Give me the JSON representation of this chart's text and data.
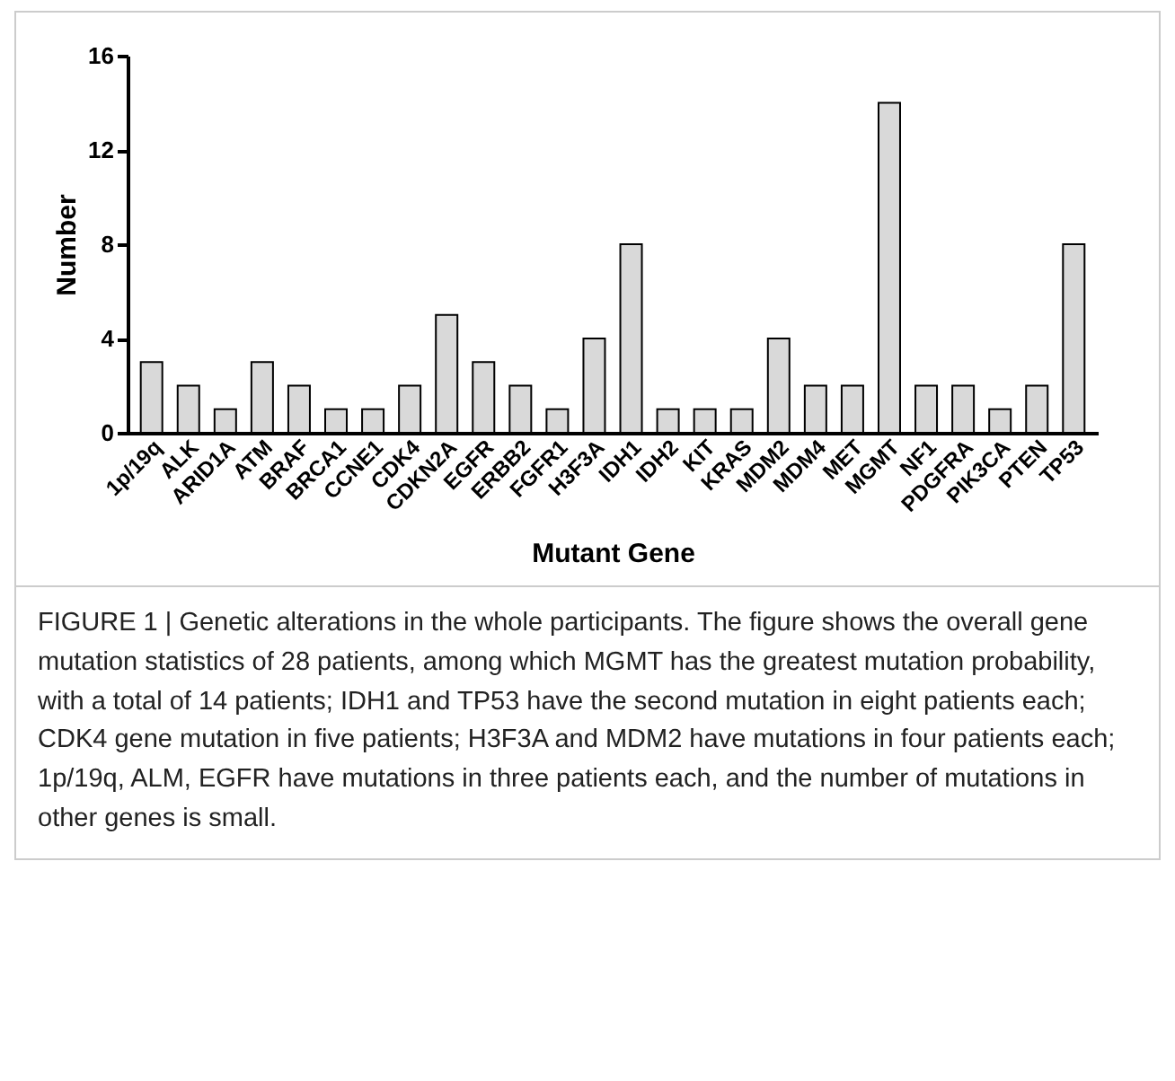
{
  "chart_data": {
    "type": "bar",
    "xlabel": "Mutant Gene",
    "ylabel": "Number",
    "categories": [
      "1p/19q",
      "ALK",
      "ARID1A",
      "ATM",
      "BRAF",
      "BRCA1",
      "CCNE1",
      "CDK4",
      "CDKN2A",
      "EGFR",
      "ERBB2",
      "FGFR1",
      "H3F3A",
      "IDH1",
      "IDH2",
      "KIT",
      "KRAS",
      "MDM2",
      "MDM4",
      "MET",
      "MGMT",
      "NF1",
      "PDGFRA",
      "PIK3CA",
      "PTEN",
      "TP53"
    ],
    "values": [
      3,
      2,
      1,
      3,
      2,
      1,
      1,
      2,
      5,
      3,
      2,
      1,
      4,
      8,
      1,
      1,
      1,
      4,
      2,
      2,
      14,
      2,
      2,
      1,
      2,
      8
    ],
    "color": "#d9d9d9",
    "ylim": [
      0,
      16
    ],
    "yticks": [
      0,
      4,
      8,
      12,
      16
    ],
    "grid": false,
    "annotations": [
      "FIGURE 1 | Genetic alterations in the whole participants. The figure shows the overall gene mutation statistics of 28 patients, among which MGMT has the greatest mutation probability, with a total of 14 patients; IDH1 and TP53 have the second mutation in eight patients each; CDK4 gene mutation in five patients; H3F3A and MDM2 have mutations in four patients each; 1p/19q, ALM, EGFR have mutations in three patients each, and the number of mutations in other genes is small."
    ]
  }
}
